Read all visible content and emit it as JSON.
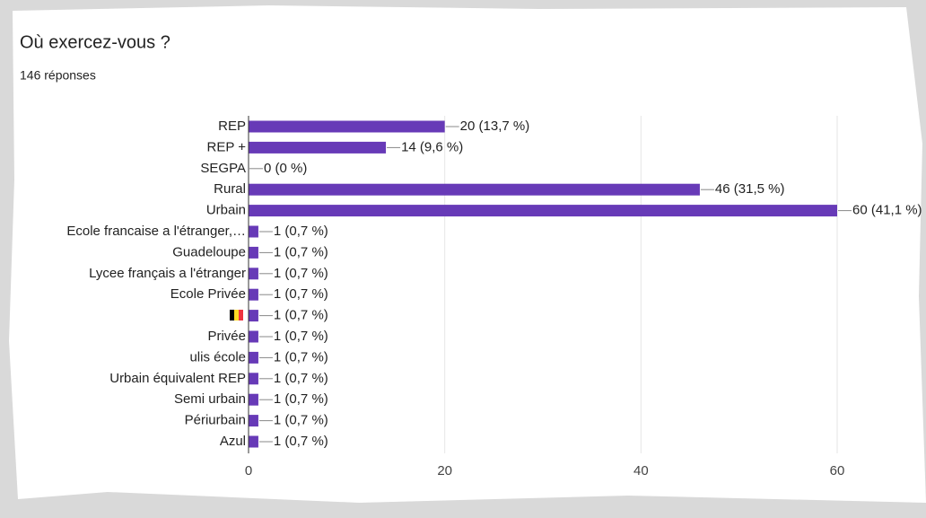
{
  "chart_data": {
    "type": "bar",
    "orientation": "horizontal",
    "title": "Où exercez-vous ?",
    "subtitle": "146 réponses",
    "categories": [
      "REP",
      "REP +",
      "SEGPA",
      "Rural",
      "Urbain",
      "Ecole francaise a l'étranger,…",
      "Guadeloupe",
      "Lycee français a l'étranger",
      "Ecole Privée",
      null,
      "Privée",
      "ulis école",
      "Urbain équivalent REP",
      "Semi urbain",
      "Périurbain",
      "Azul"
    ],
    "values": [
      20,
      14,
      0,
      46,
      60,
      1,
      1,
      1,
      1,
      1,
      1,
      1,
      1,
      1,
      1,
      1
    ],
    "value_labels": [
      "20 (13,7 %)",
      "14 (9,6 %)",
      "0 (0 %)",
      "46 (31,5 %)",
      "60 (41,1 %)",
      "1 (0,7 %)",
      "1 (0,7 %)",
      "1 (0,7 %)",
      "1 (0,7 %)",
      "1 (0,7 %)",
      "1 (0,7 %)",
      "1 (0,7 %)",
      "1 (0,7 %)",
      "1 (0,7 %)",
      "1 (0,7 %)",
      "1 (0,7 %)"
    ],
    "color": "#673ab7",
    "xlim": [
      0,
      60
    ],
    "xticks": [
      0,
      20,
      40,
      60
    ],
    "grid": true
  }
}
